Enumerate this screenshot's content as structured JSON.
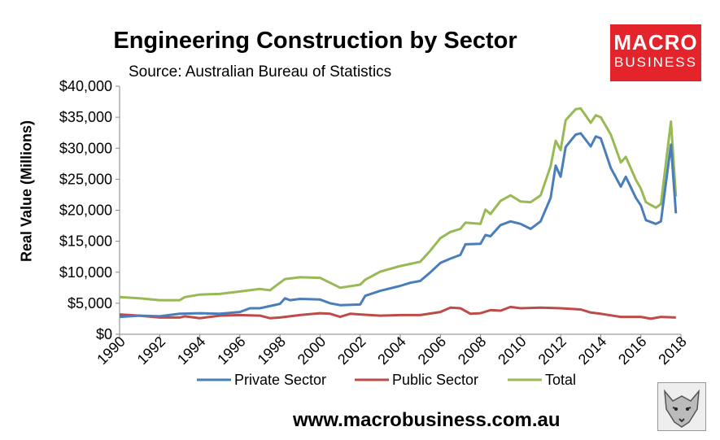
{
  "title": "Engineering Construction by Sector",
  "subtitle": "Source: Australian Bureau of Statistics",
  "logo": {
    "line1": "MACRO",
    "line2": "BUSINESS",
    "color": "#e4242b"
  },
  "footer_url": "www.macrobusiness.com.au",
  "chart_data": {
    "type": "line",
    "ylabel": "Real Value (Millions)",
    "ylim": [
      0,
      40000
    ],
    "yticks": [
      "$0",
      "$5,000",
      "$10,000",
      "$15,000",
      "$20,000",
      "$25,000",
      "$30,000",
      "$35,000",
      "$40,000"
    ],
    "xlim": [
      1990,
      2018
    ],
    "xticks": [
      "1990",
      "1992",
      "1994",
      "1996",
      "1998",
      "2000",
      "2002",
      "2004",
      "2006",
      "2008",
      "2010",
      "2012",
      "2014",
      "2016",
      "2018"
    ],
    "grid": false,
    "legend_position": "bottom",
    "series": [
      {
        "name": "Private Sector",
        "color": "#4a7ebb",
        "points": [
          [
            1990,
            2800
          ],
          [
            1991,
            3000
          ],
          [
            1992,
            2900
          ],
          [
            1993,
            3300
          ],
          [
            1994,
            3400
          ],
          [
            1995,
            3300
          ],
          [
            1996,
            3600
          ],
          [
            1996.5,
            4200
          ],
          [
            1997,
            4200
          ],
          [
            1998,
            4900
          ],
          [
            1998.25,
            5800
          ],
          [
            1998.5,
            5500
          ],
          [
            1999,
            5700
          ],
          [
            2000,
            5600
          ],
          [
            2000.5,
            5000
          ],
          [
            2001,
            4700
          ],
          [
            2002,
            4800
          ],
          [
            2002.25,
            6200
          ],
          [
            2003,
            7000
          ],
          [
            2004,
            7800
          ],
          [
            2004.5,
            8300
          ],
          [
            2005,
            8600
          ],
          [
            2005.5,
            10000
          ],
          [
            2006,
            11500
          ],
          [
            2006.5,
            12200
          ],
          [
            2007,
            12800
          ],
          [
            2007.25,
            14500
          ],
          [
            2008,
            14600
          ],
          [
            2008.25,
            16000
          ],
          [
            2008.5,
            15800
          ],
          [
            2009,
            17600
          ],
          [
            2009.5,
            18200
          ],
          [
            2010,
            17800
          ],
          [
            2010.5,
            17000
          ],
          [
            2011,
            18200
          ],
          [
            2011.5,
            22000
          ],
          [
            2011.75,
            27200
          ],
          [
            2012,
            25400
          ],
          [
            2012.25,
            30200
          ],
          [
            2012.75,
            32200
          ],
          [
            2013,
            32400
          ],
          [
            2013.5,
            30300
          ],
          [
            2013.75,
            31900
          ],
          [
            2014,
            31600
          ],
          [
            2014.5,
            26800
          ],
          [
            2015,
            23800
          ],
          [
            2015.25,
            25400
          ],
          [
            2015.75,
            22000
          ],
          [
            2016,
            20800
          ],
          [
            2016.25,
            18400
          ],
          [
            2016.75,
            17800
          ],
          [
            2017,
            18200
          ],
          [
            2017.5,
            30600
          ],
          [
            2017.75,
            19500
          ]
        ]
      },
      {
        "name": "Public Sector",
        "color": "#be4b48",
        "points": [
          [
            1990,
            3200
          ],
          [
            1991,
            3000
          ],
          [
            1992,
            2700
          ],
          [
            1993,
            2700
          ],
          [
            1993.25,
            2900
          ],
          [
            1994,
            2600
          ],
          [
            1995,
            3000
          ],
          [
            1996,
            3100
          ],
          [
            1997,
            3000
          ],
          [
            1997.5,
            2600
          ],
          [
            1998,
            2700
          ],
          [
            1999,
            3100
          ],
          [
            2000,
            3400
          ],
          [
            2000.5,
            3300
          ],
          [
            2001,
            2800
          ],
          [
            2001.5,
            3300
          ],
          [
            2002,
            3200
          ],
          [
            2003,
            3000
          ],
          [
            2004,
            3100
          ],
          [
            2005,
            3100
          ],
          [
            2006,
            3600
          ],
          [
            2006.5,
            4300
          ],
          [
            2007,
            4200
          ],
          [
            2007.5,
            3300
          ],
          [
            2008,
            3400
          ],
          [
            2008.5,
            3900
          ],
          [
            2009,
            3800
          ],
          [
            2009.5,
            4400
          ],
          [
            2010,
            4200
          ],
          [
            2011,
            4300
          ],
          [
            2012,
            4200
          ],
          [
            2013,
            4000
          ],
          [
            2013.5,
            3500
          ],
          [
            2014,
            3300
          ],
          [
            2015,
            2800
          ],
          [
            2016,
            2800
          ],
          [
            2016.5,
            2500
          ],
          [
            2017,
            2800
          ],
          [
            2017.75,
            2700
          ]
        ]
      },
      {
        "name": "Total",
        "color": "#98b954",
        "points": [
          [
            1990,
            6000
          ],
          [
            1991,
            5800
          ],
          [
            1992,
            5500
          ],
          [
            1993,
            5500
          ],
          [
            1993.25,
            6000
          ],
          [
            1994,
            6400
          ],
          [
            1995,
            6500
          ],
          [
            1996,
            6900
          ],
          [
            1997,
            7300
          ],
          [
            1997.5,
            7100
          ],
          [
            1998,
            8300
          ],
          [
            1998.25,
            8900
          ],
          [
            1999,
            9200
          ],
          [
            2000,
            9100
          ],
          [
            2000.5,
            8300
          ],
          [
            2001,
            7500
          ],
          [
            2002,
            8000
          ],
          [
            2002.25,
            8800
          ],
          [
            2003,
            10100
          ],
          [
            2004,
            11000
          ],
          [
            2005,
            11700
          ],
          [
            2005.5,
            13500
          ],
          [
            2006,
            15500
          ],
          [
            2006.5,
            16500
          ],
          [
            2007,
            17000
          ],
          [
            2007.25,
            18000
          ],
          [
            2008,
            17800
          ],
          [
            2008.25,
            20100
          ],
          [
            2008.5,
            19400
          ],
          [
            2009,
            21500
          ],
          [
            2009.5,
            22400
          ],
          [
            2010,
            21400
          ],
          [
            2010.5,
            21300
          ],
          [
            2011,
            22400
          ],
          [
            2011.5,
            27100
          ],
          [
            2011.75,
            31200
          ],
          [
            2012,
            29700
          ],
          [
            2012.25,
            34500
          ],
          [
            2012.75,
            36300
          ],
          [
            2013,
            36400
          ],
          [
            2013.5,
            34100
          ],
          [
            2013.75,
            35300
          ],
          [
            2014,
            35000
          ],
          [
            2014.5,
            32200
          ],
          [
            2015,
            27700
          ],
          [
            2015.25,
            28600
          ],
          [
            2015.75,
            24900
          ],
          [
            2016,
            23500
          ],
          [
            2016.25,
            21300
          ],
          [
            2016.75,
            20400
          ],
          [
            2017,
            21000
          ],
          [
            2017.5,
            34300
          ],
          [
            2017.75,
            22200
          ]
        ]
      }
    ]
  }
}
